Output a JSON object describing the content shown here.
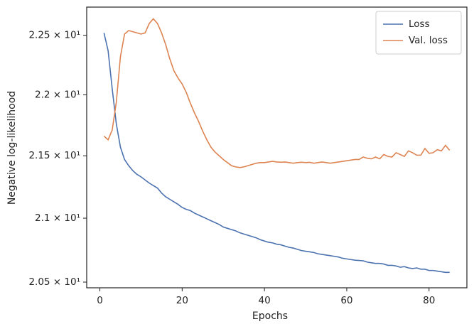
{
  "chart_data": {
    "type": "line",
    "xlabel": "Epochs",
    "ylabel": "Negative log-likelihood",
    "x": [
      1,
      2,
      3,
      4,
      5,
      6,
      7,
      8,
      9,
      10,
      11,
      12,
      13,
      14,
      15,
      16,
      17,
      18,
      19,
      20,
      21,
      22,
      23,
      24,
      25,
      26,
      27,
      28,
      29,
      30,
      31,
      32,
      33,
      34,
      35,
      36,
      37,
      38,
      39,
      40,
      41,
      42,
      43,
      44,
      45,
      46,
      47,
      48,
      49,
      50,
      51,
      52,
      53,
      54,
      55,
      56,
      57,
      58,
      59,
      60,
      61,
      62,
      63,
      64,
      65,
      66,
      67,
      68,
      69,
      70,
      71,
      72,
      73,
      74,
      75,
      76,
      77,
      78,
      79,
      80,
      81,
      82,
      83,
      84,
      85
    ],
    "series": [
      {
        "name": "Loss",
        "color": "#4c72b0",
        "values": [
          22.52,
          22.37,
          22.05,
          21.76,
          21.57,
          21.47,
          21.42,
          21.38,
          21.35,
          21.33,
          21.305,
          21.28,
          21.26,
          21.24,
          21.2,
          21.17,
          21.15,
          21.13,
          21.11,
          21.085,
          21.07,
          21.06,
          21.04,
          21.025,
          21.01,
          20.995,
          20.98,
          20.965,
          20.95,
          20.93,
          20.92,
          20.91,
          20.9,
          20.885,
          20.875,
          20.865,
          20.855,
          20.845,
          20.83,
          20.82,
          20.81,
          20.805,
          20.795,
          20.79,
          20.78,
          20.77,
          20.765,
          20.755,
          20.745,
          20.74,
          20.735,
          20.73,
          20.72,
          20.715,
          20.71,
          20.705,
          20.7,
          20.695,
          20.685,
          20.68,
          20.675,
          20.67,
          20.668,
          20.665,
          20.655,
          20.65,
          20.645,
          20.645,
          20.64,
          20.63,
          20.63,
          20.625,
          20.615,
          20.62,
          20.61,
          20.605,
          20.61,
          20.6,
          20.6,
          20.59,
          20.59,
          20.585,
          20.58,
          20.575,
          20.575
        ]
      },
      {
        "name": "Val. loss",
        "color": "#dd8452",
        "values": [
          21.66,
          21.63,
          21.71,
          21.94,
          22.32,
          22.51,
          22.54,
          22.53,
          22.52,
          22.51,
          22.52,
          22.6,
          22.64,
          22.6,
          22.52,
          22.42,
          22.3,
          22.2,
          22.14,
          22.09,
          22.02,
          21.93,
          21.85,
          21.78,
          21.7,
          21.63,
          21.57,
          21.53,
          21.5,
          21.47,
          21.445,
          21.42,
          21.41,
          21.405,
          21.41,
          21.42,
          21.43,
          21.44,
          21.445,
          21.445,
          21.45,
          21.455,
          21.45,
          21.448,
          21.45,
          21.445,
          21.44,
          21.445,
          21.448,
          21.445,
          21.447,
          21.44,
          21.445,
          21.45,
          21.445,
          21.44,
          21.445,
          21.45,
          21.455,
          21.46,
          21.465,
          21.47,
          21.47,
          21.49,
          21.48,
          21.475,
          21.49,
          21.475,
          21.51,
          21.495,
          21.49,
          21.525,
          21.51,
          21.495,
          21.54,
          21.525,
          21.505,
          21.505,
          21.56,
          21.52,
          21.525,
          21.55,
          21.54,
          21.585,
          21.545
        ]
      }
    ],
    "xlim": [
      -3.2,
      89.2
    ],
    "xticks": [
      0,
      20,
      40,
      60,
      80
    ],
    "ylim": [
      20.456,
      22.74
    ],
    "yscale": "log",
    "yticks": [
      {
        "value": 20.5,
        "label": "2.05 × 10¹"
      },
      {
        "value": 21,
        "label": "2.1 × 10¹"
      },
      {
        "value": 21.5,
        "label": "2.15 × 10¹"
      },
      {
        "value": 22,
        "label": "2.2 × 10¹"
      },
      {
        "value": 22.5,
        "label": "2.25 × 10¹"
      }
    ],
    "grid": false,
    "legend": "upper right"
  }
}
